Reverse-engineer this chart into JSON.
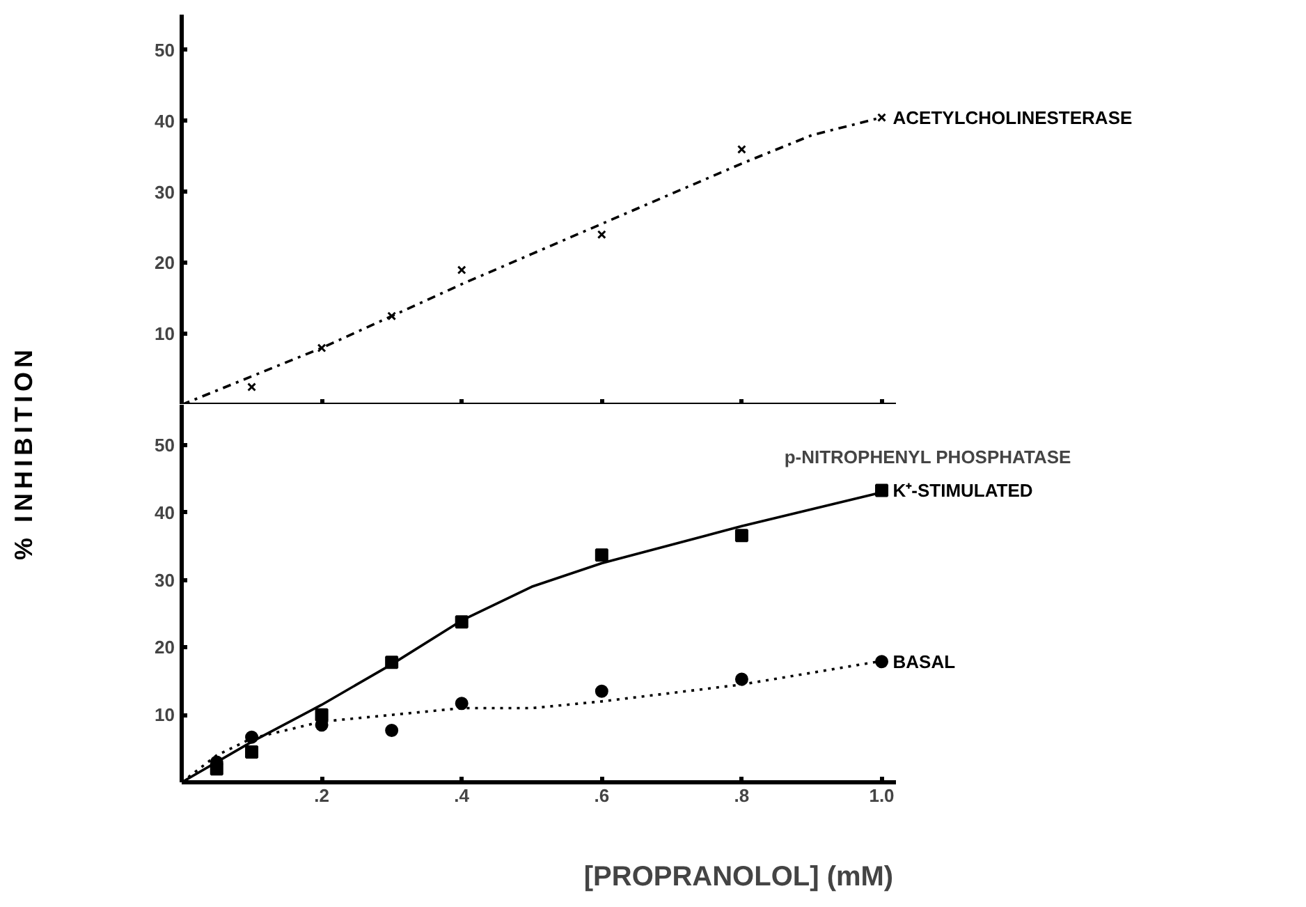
{
  "chart_data": [
    {
      "type": "scatter",
      "ylabel": "% INHIBITION",
      "xlim": [
        0,
        1.02
      ],
      "ylim": [
        0,
        55
      ],
      "xticks": [
        {
          "value": 0.2,
          "label": null
        },
        {
          "value": 0.4,
          "label": null
        },
        {
          "value": 0.6,
          "label": null
        },
        {
          "value": 0.8,
          "label": null
        },
        {
          "value": 1.0,
          "label": null
        }
      ],
      "yticks": [
        10,
        20,
        30,
        40,
        50
      ],
      "tick_labels": "y",
      "grid": false,
      "series": [
        {
          "name": "ACETYLCHOLINESTERASE",
          "color": "#000000",
          "marker": "cross",
          "x": [
            0.1,
            0.2,
            0.3,
            0.4,
            0.6,
            0.8,
            1.0
          ],
          "values": [
            2.5,
            8,
            12.5,
            19,
            24,
            36,
            40.5
          ]
        },
        {
          "type": "line",
          "color": "#000000",
          "line_style": "dashed",
          "x": [
            0,
            0.2,
            0.4,
            0.6,
            0.8,
            0.9,
            1.0
          ],
          "values": [
            0,
            8,
            17,
            25.5,
            34,
            38,
            40.5
          ]
        }
      ]
    },
    {
      "type": "scatter",
      "xlabel": "[PROPRANOLOL] (mM)",
      "annotations": [
        "p-NITROPHENYL PHOSPHATASE"
      ],
      "xlim": [
        0,
        1.02
      ],
      "ylim": [
        0,
        56
      ],
      "xticks": [
        {
          "value": 0.2,
          "label": ".2"
        },
        {
          "value": 0.4,
          "label": ".4"
        },
        {
          "value": 0.6,
          "label": ".6"
        },
        {
          "value": 0.8,
          "label": ".8"
        },
        {
          "value": 1.0,
          "label": "1.0"
        }
      ],
      "yticks": [
        10,
        20,
        30,
        40,
        50
      ],
      "grid": false,
      "series": [
        {
          "name": "K⁺-STIMULATED",
          "color": "#000000",
          "marker": "square",
          "x": [
            0.05,
            0.1,
            0.2,
            0.3,
            0.4,
            0.6,
            0.8,
            1.0
          ],
          "values": [
            2,
            4.5,
            10,
            17.8,
            23.8,
            33.7,
            36.6,
            43.3
          ]
        },
        {
          "name": "BASAL",
          "color": "#000000",
          "marker": "circle",
          "x": [
            0.05,
            0.1,
            0.2,
            0.3,
            0.4,
            0.6,
            0.8,
            1.0
          ],
          "values": [
            3,
            6.7,
            8.5,
            7.7,
            11.7,
            13.5,
            15.3,
            17.9
          ]
        },
        {
          "type": "line",
          "color": "#000000",
          "line_style": "solid",
          "x": [
            0,
            0.1,
            0.2,
            0.3,
            0.4,
            0.5,
            0.6,
            0.8,
            1.0
          ],
          "values": [
            0,
            6,
            11.5,
            17.5,
            24,
            29,
            32.5,
            38,
            43
          ]
        },
        {
          "type": "line",
          "color": "#000000",
          "line_style": "dotted",
          "x": [
            0,
            0.05,
            0.1,
            0.2,
            0.3,
            0.4,
            0.5,
            0.6,
            0.8,
            1.0
          ],
          "values": [
            0,
            4,
            6.5,
            9,
            10,
            11,
            11,
            12,
            14.5,
            18
          ]
        }
      ]
    }
  ]
}
